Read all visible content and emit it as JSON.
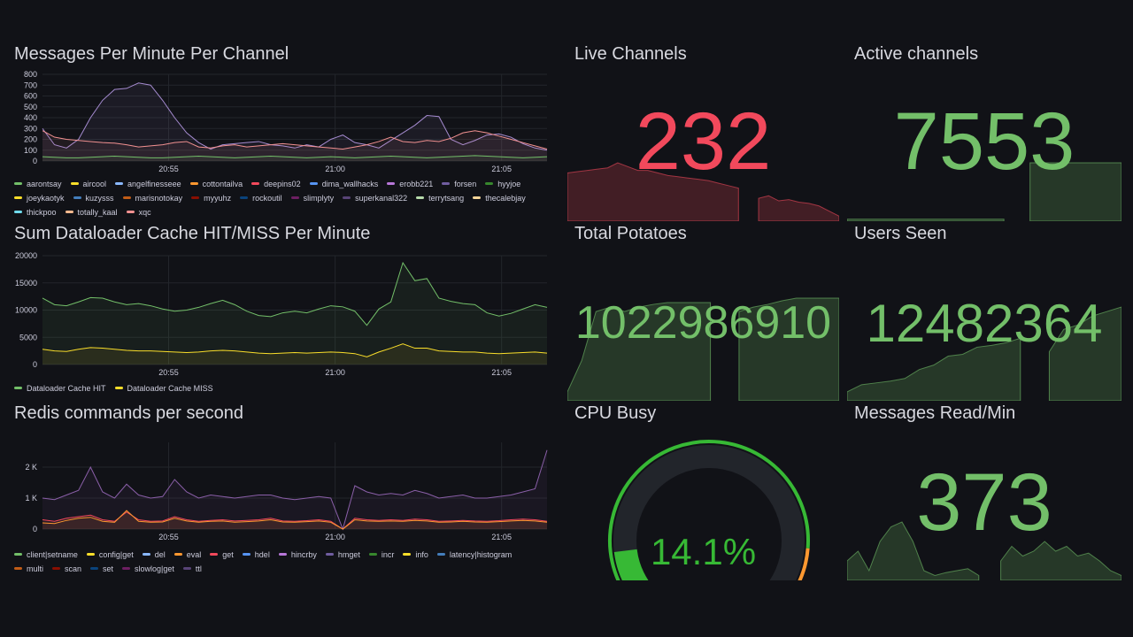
{
  "panels": {
    "messages": {
      "title": "Messages Per Minute Per Channel"
    },
    "cache": {
      "title": "Sum Dataloader Cache HIT/MISS Per Minute"
    },
    "redis": {
      "title": "Redis commands per second"
    },
    "live": {
      "title": "Live Channels",
      "value": "232",
      "color": "#f2495c"
    },
    "active": {
      "title": "Active channels",
      "value": "7553",
      "color": "#73bf69"
    },
    "potatoes": {
      "title": "Total Potatoes",
      "value": "1022986910",
      "color": "#73bf69"
    },
    "users": {
      "title": "Users Seen",
      "value": "12482364",
      "color": "#73bf69"
    },
    "cpu": {
      "title": "CPU Busy",
      "value": "14.1%",
      "percent": 14.1,
      "color": "#37b935"
    },
    "msgread": {
      "title": "Messages Read/Min",
      "value": "373",
      "color": "#73bf69"
    }
  },
  "chart_data": [
    {
      "type": "line",
      "title": "Messages Per Minute Per Channel",
      "yticks": [
        "800",
        "700",
        "600",
        "500",
        "400",
        "300",
        "200",
        "100",
        "0"
      ],
      "ylim": [
        0,
        800
      ],
      "xticks": [
        "20:55",
        "21:00",
        "21:05"
      ],
      "legend": [
        {
          "name": "aarontsay",
          "color": "#73bf69"
        },
        {
          "name": "aircool",
          "color": "#fade2a"
        },
        {
          "name": "angelfinesseee",
          "color": "#8ab8ff"
        },
        {
          "name": "cottontailva",
          "color": "#ff9830"
        },
        {
          "name": "deepins02",
          "color": "#f2495c"
        },
        {
          "name": "dima_wallhacks",
          "color": "#5794f2"
        },
        {
          "name": "erobb221",
          "color": "#b877d9"
        },
        {
          "name": "forsen",
          "color": "#705da0"
        },
        {
          "name": "hyyjoe",
          "color": "#37872d"
        },
        {
          "name": "joeykaotyk",
          "color": "#fade2a"
        },
        {
          "name": "kuzysss",
          "color": "#447ebc"
        },
        {
          "name": "marisnotokay",
          "color": "#c15c17"
        },
        {
          "name": "myyuhz",
          "color": "#890f02"
        },
        {
          "name": "rockoutil",
          "color": "#0a437c"
        },
        {
          "name": "slimplyty",
          "color": "#6d1f62"
        },
        {
          "name": "superkanal322",
          "color": "#584477"
        },
        {
          "name": "terrytsang",
          "color": "#b7dbab"
        },
        {
          "name": "thecalebjay",
          "color": "#f4d598"
        },
        {
          "name": "thickpoo",
          "color": "#70dbed"
        },
        {
          "name": "totally_kaal",
          "color": "#f9ba8f"
        },
        {
          "name": "xqc",
          "color": "#f29191"
        }
      ],
      "series": [
        {
          "name": "forsen",
          "color": "#a58bd0",
          "values": [
            300,
            150,
            120,
            200,
            400,
            560,
            660,
            670,
            720,
            700,
            560,
            400,
            260,
            170,
            110,
            150,
            160,
            170,
            180,
            150,
            140,
            120,
            150,
            130,
            200,
            240,
            170,
            150,
            120,
            190,
            260,
            330,
            420,
            410,
            200,
            150,
            190,
            240,
            250,
            220,
            160,
            120,
            100
          ]
        },
        {
          "name": "xqc",
          "color": "#f29191",
          "values": [
            280,
            220,
            200,
            190,
            180,
            170,
            165,
            150,
            130,
            140,
            150,
            170,
            180,
            130,
            120,
            140,
            150,
            130,
            140,
            150,
            160,
            150,
            140,
            130,
            120,
            110,
            130,
            150,
            180,
            220,
            180,
            170,
            190,
            180,
            210,
            260,
            280,
            260,
            230,
            200,
            170,
            140,
            110
          ]
        },
        {
          "name": "aarontsay",
          "color": "#73bf69",
          "values": [
            40,
            35,
            30,
            30,
            35,
            40,
            45,
            40,
            35,
            30,
            30,
            35,
            40,
            45,
            40,
            35,
            30,
            35,
            40,
            45,
            40,
            35,
            30,
            35,
            40,
            35,
            30,
            35,
            40,
            45,
            40,
            35,
            30,
            35,
            40,
            45,
            50,
            45,
            40,
            35,
            30,
            35,
            40
          ]
        }
      ]
    },
    {
      "type": "line",
      "title": "Sum Dataloader Cache HIT/MISS Per Minute",
      "yticks": [
        "20000",
        "15000",
        "10000",
        "5000",
        "0"
      ],
      "ylim": [
        0,
        20000
      ],
      "xticks": [
        "20:55",
        "21:00",
        "21:05"
      ],
      "series": [
        {
          "name": "Dataloader Cache HIT",
          "color": "#73bf69",
          "values": [
            12200,
            11000,
            10800,
            11500,
            12300,
            12200,
            11500,
            11000,
            11200,
            10800,
            10200,
            9800,
            10000,
            10500,
            11200,
            11800,
            11000,
            9800,
            9000,
            8800,
            9500,
            9800,
            9500,
            10200,
            10800,
            10600,
            9800,
            7200,
            10200,
            11500,
            18700,
            15400,
            15800,
            12200,
            11600,
            11200,
            11000,
            9500,
            8900,
            9400,
            10200,
            11000,
            10500
          ],
          "legend_color": "#73bf69"
        },
        {
          "name": "Dataloader Cache MISS",
          "color": "#fade2a",
          "values": [
            2800,
            2500,
            2400,
            2800,
            3100,
            3000,
            2800,
            2600,
            2500,
            2500,
            2400,
            2300,
            2200,
            2300,
            2500,
            2600,
            2500,
            2300,
            2100,
            2000,
            2100,
            2200,
            2100,
            2200,
            2300,
            2200,
            2000,
            1400,
            2300,
            3000,
            3800,
            3000,
            3000,
            2500,
            2400,
            2300,
            2300,
            2100,
            2000,
            2100,
            2200,
            2300,
            2100
          ],
          "legend_color": "#fade2a"
        }
      ]
    },
    {
      "type": "line",
      "title": "Redis commands per second",
      "yticks": [
        "2 K",
        "1 K",
        "0"
      ],
      "ylim": [
        0,
        2800
      ],
      "xticks": [
        "20:55",
        "21:00",
        "21:05"
      ],
      "legend": [
        {
          "name": "client|setname",
          "color": "#73bf69"
        },
        {
          "name": "config|get",
          "color": "#fade2a"
        },
        {
          "name": "del",
          "color": "#8ab8ff"
        },
        {
          "name": "eval",
          "color": "#ff9830"
        },
        {
          "name": "get",
          "color": "#f2495c"
        },
        {
          "name": "hdel",
          "color": "#5794f2"
        },
        {
          "name": "hincrby",
          "color": "#b877d9"
        },
        {
          "name": "hmget",
          "color": "#705da0"
        },
        {
          "name": "incr",
          "color": "#37872d"
        },
        {
          "name": "info",
          "color": "#fade2a"
        },
        {
          "name": "latency|histogram",
          "color": "#447ebc"
        },
        {
          "name": "multi",
          "color": "#c15c17"
        },
        {
          "name": "scan",
          "color": "#890f02"
        },
        {
          "name": "set",
          "color": "#0a437c"
        },
        {
          "name": "slowlog|get",
          "color": "#6d1f62"
        },
        {
          "name": "ttl",
          "color": "#584477"
        }
      ],
      "series": [
        {
          "name": "hmget",
          "color": "#8a5fa8",
          "values": [
            1000,
            950,
            1100,
            1250,
            2000,
            1200,
            1000,
            1450,
            1100,
            1000,
            1050,
            1600,
            1200,
            1000,
            1100,
            1050,
            1000,
            1050,
            1100,
            1100,
            1000,
            950,
            1000,
            1050,
            1000,
            0,
            1400,
            1200,
            1100,
            1150,
            1100,
            1250,
            1150,
            1000,
            1050,
            1100,
            1000,
            1000,
            1050,
            1100,
            1200,
            1300,
            2550
          ]
        },
        {
          "name": "get",
          "color": "#f2495c",
          "values": [
            300,
            250,
            350,
            400,
            450,
            300,
            250,
            550,
            300,
            250,
            260,
            400,
            300,
            250,
            280,
            300,
            260,
            280,
            300,
            350,
            260,
            250,
            270,
            300,
            250,
            0,
            350,
            300,
            280,
            300,
            280,
            320,
            300,
            250,
            260,
            280,
            260,
            250,
            270,
            300,
            320,
            300,
            250
          ]
        },
        {
          "name": "eval",
          "color": "#ff9830",
          "values": [
            200,
            180,
            280,
            350,
            380,
            250,
            220,
            600,
            250,
            220,
            230,
            350,
            260,
            220,
            250,
            260,
            220,
            240,
            260,
            300,
            230,
            220,
            240,
            260,
            220,
            0,
            300,
            260,
            250,
            260,
            250,
            280,
            260,
            220,
            230,
            250,
            230,
            220,
            240,
            260,
            280,
            260,
            220
          ]
        }
      ]
    }
  ],
  "stat_sparks": {
    "live": [
      190,
      195,
      200,
      205,
      210,
      230,
      215,
      200,
      200,
      190,
      180,
      175,
      170,
      165,
      160,
      150,
      140,
      130,
      null,
      90,
      100,
      80,
      85,
      75,
      70,
      60,
      40,
      20
    ],
    "active": [
      2,
      2,
      2,
      2,
      2,
      2,
      2,
      2,
      2,
      2,
      2,
      2,
      2,
      null,
      60,
      60,
      60,
      60,
      60,
      60,
      60,
      60
    ],
    "potatoes": [
      10,
      45,
      100,
      105,
      100,
      105,
      108,
      110,
      110,
      110,
      110,
      null,
      100,
      105,
      108,
      112,
      115,
      115,
      115,
      115
    ],
    "users": [
      10,
      18,
      20,
      22,
      25,
      35,
      40,
      50,
      52,
      60,
      62,
      65,
      70,
      null,
      55,
      80,
      85,
      95,
      100,
      105
    ],
    "msgread": [
      20,
      30,
      10,
      40,
      55,
      60,
      40,
      10,
      5,
      8,
      10,
      12,
      5,
      null,
      20,
      35,
      25,
      30,
      40,
      30,
      35,
      25,
      28,
      20,
      10,
      5
    ]
  }
}
